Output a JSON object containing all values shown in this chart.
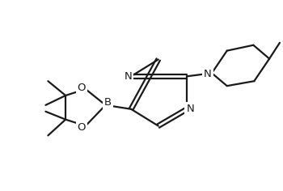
{
  "background_color": "#ffffff",
  "line_color": "#1a1a1a",
  "line_width": 1.6,
  "font_size": 9.5,
  "figsize": [
    3.5,
    2.36
  ],
  "dpi": 100,
  "xlim": [
    0,
    350
  ],
  "ylim": [
    0,
    236
  ]
}
